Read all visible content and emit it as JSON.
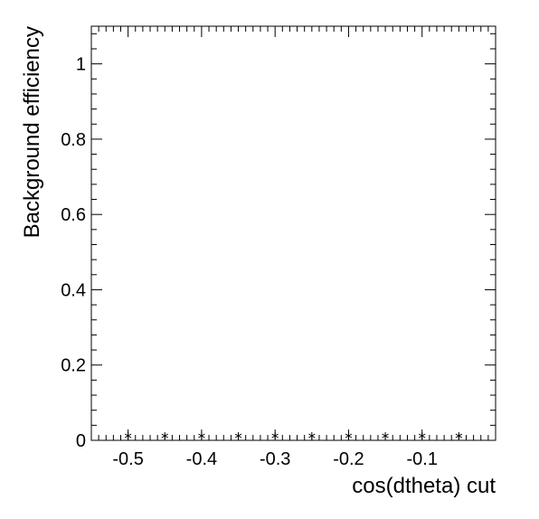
{
  "chart_data": {
    "type": "scatter",
    "title": "",
    "xlabel": "cos(dtheta) cut",
    "ylabel": "Background efficiency",
    "xlim": [
      -0.55,
      0.0
    ],
    "ylim": [
      0,
      1.1
    ],
    "x_ticks": [
      -0.5,
      -0.4,
      -0.3,
      -0.2,
      -0.1
    ],
    "x_tick_labels": [
      "-0.5",
      "-0.4",
      "-0.3",
      "-0.2",
      "-0.1"
    ],
    "y_ticks": [
      0,
      0.2,
      0.4,
      0.6,
      0.8,
      1
    ],
    "y_tick_labels": [
      "0",
      "0.2",
      "0.4",
      "0.6",
      "0.8",
      "1"
    ],
    "grid": false,
    "marker": "asterisk",
    "series": [
      {
        "x": [
          -0.5,
          -0.45,
          -0.4,
          -0.35,
          -0.3,
          -0.25,
          -0.2,
          -0.15,
          -0.1,
          -0.05
        ],
        "y": [
          0.012,
          0.012,
          0.012,
          0.012,
          0.012,
          0.012,
          0.012,
          0.012,
          0.012,
          0.012
        ]
      }
    ]
  }
}
